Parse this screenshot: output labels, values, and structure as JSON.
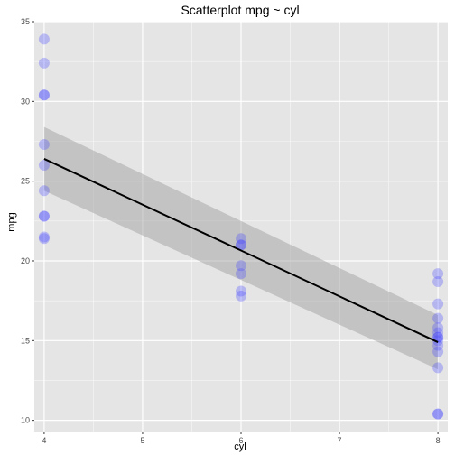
{
  "chart_data": {
    "type": "scatter",
    "title": "Scatterplot mpg ~ cyl",
    "xlabel": "cyl",
    "ylabel": "mpg",
    "xlim": [
      3.9,
      8.1
    ],
    "ylim": [
      9.3,
      35.0
    ],
    "xticks": [
      4,
      5,
      6,
      7,
      8
    ],
    "yticks": [
      10,
      15,
      20,
      25,
      30,
      35
    ],
    "grid": true,
    "legend": "none",
    "colors": {
      "panel": "#e5e5e5",
      "grid_major": "#ffffff",
      "point": "#4444ff",
      "fit_line": "#000000",
      "confidence_band": "#999999"
    },
    "series": [
      {
        "x": [
          4,
          4,
          4,
          4,
          4,
          4,
          4,
          4,
          4,
          4,
          4,
          6,
          6,
          6,
          6,
          6,
          6,
          6,
          8,
          8,
          8,
          8,
          8,
          8,
          8,
          8,
          8,
          8,
          8,
          8,
          8,
          8
        ],
        "y": [
          33.9,
          32.4,
          30.4,
          30.4,
          27.3,
          26.0,
          24.4,
          22.8,
          22.8,
          21.5,
          21.4,
          21.4,
          21.0,
          21.0,
          19.7,
          19.2,
          18.1,
          17.8,
          19.2,
          18.7,
          17.3,
          16.4,
          15.8,
          15.5,
          15.2,
          15.2,
          15.0,
          14.7,
          14.3,
          13.3,
          10.4,
          10.4
        ]
      }
    ],
    "fit": {
      "type": "linear",
      "x": [
        4,
        8
      ],
      "y": [
        26.4,
        14.9
      ],
      "ci_lower": [
        24.4,
        13.2
      ],
      "ci_upper": [
        28.4,
        16.6
      ]
    }
  }
}
